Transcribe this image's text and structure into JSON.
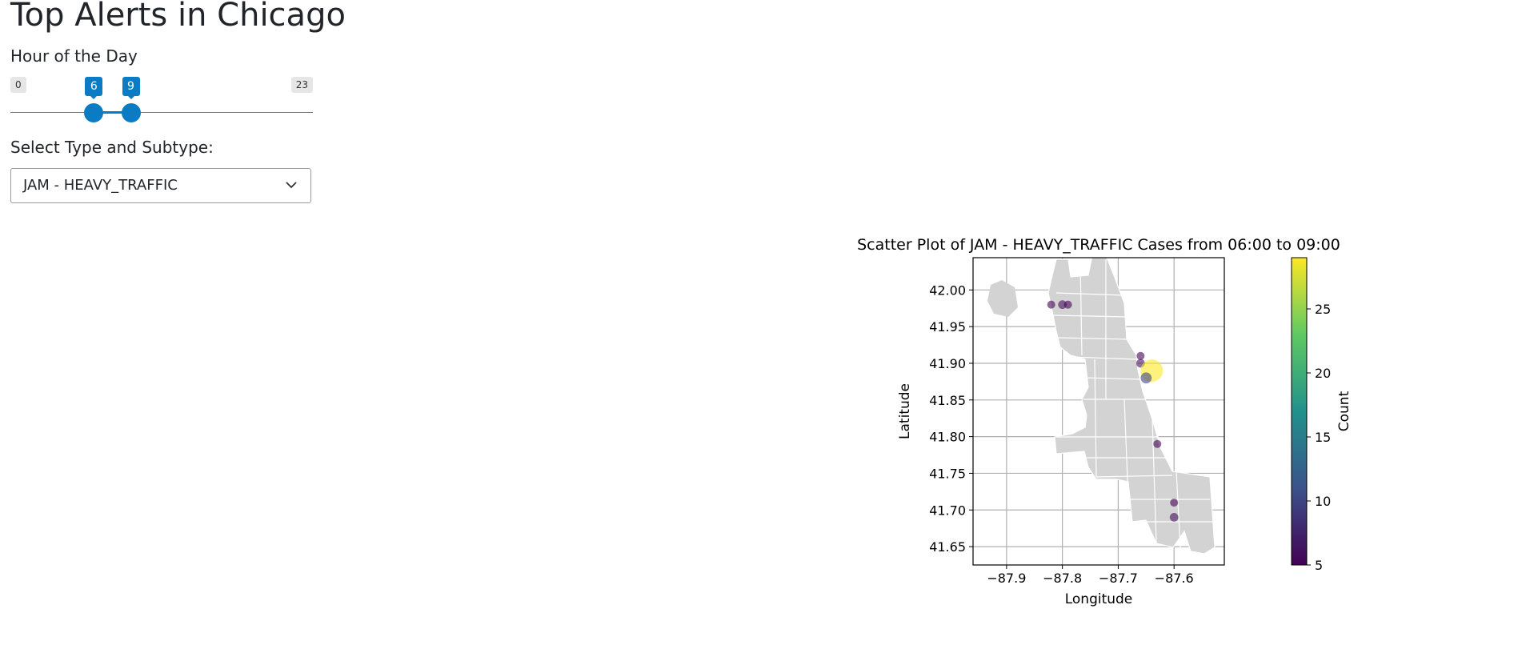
{
  "page": {
    "title": "Top Alerts in Chicago",
    "hour_label": "Hour of the Day",
    "select_label": "Select Type and Subtype:"
  },
  "slider": {
    "min": 0,
    "max": 23,
    "from": 6,
    "to": 9,
    "min_label": "0",
    "max_label": "23",
    "from_label": "6",
    "to_label": "9",
    "accent": "#0b7cc4"
  },
  "select": {
    "selected": "JAM - HEAVY_TRAFFIC"
  },
  "icons": {
    "dropdown": "chevron-down-icon"
  },
  "chart_data": {
    "type": "scatter",
    "title": "Scatter Plot of JAM - HEAVY_TRAFFIC Cases from 06:00 to 09:00",
    "xlabel": "Longitude",
    "ylabel": "Latitude",
    "xlim": [
      -87.96,
      -87.51
    ],
    "ylim": [
      41.625,
      42.044
    ],
    "xticks": [
      -87.9,
      -87.8,
      -87.7,
      -87.6
    ],
    "xtick_labels": [
      "−87.9",
      "−87.8",
      "−87.7",
      "−87.6"
    ],
    "yticks": [
      41.65,
      41.7,
      41.75,
      41.8,
      41.85,
      41.9,
      41.95,
      42.0
    ],
    "ytick_labels": [
      "41.65",
      "41.70",
      "41.75",
      "41.80",
      "41.85",
      "41.90",
      "41.95",
      "42.00"
    ],
    "grid": true,
    "background_map": "Chicago neighborhood boundaries (gray)",
    "colormap": "viridis",
    "marker_alpha": 0.6,
    "colorbar": {
      "label": "Count",
      "range": [
        5,
        29
      ],
      "ticks": [
        5,
        10,
        15,
        20,
        25
      ],
      "tick_labels": [
        "5",
        "10",
        "15",
        "20",
        "25"
      ]
    },
    "points": [
      {
        "x": -87.82,
        "y": 41.98,
        "count": 5
      },
      {
        "x": -87.8,
        "y": 41.98,
        "count": 6
      },
      {
        "x": -87.79,
        "y": 41.98,
        "count": 5
      },
      {
        "x": -87.66,
        "y": 41.91,
        "count": 5
      },
      {
        "x": -87.66,
        "y": 41.9,
        "count": 6
      },
      {
        "x": -87.64,
        "y": 41.89,
        "count": 29
      },
      {
        "x": -87.65,
        "y": 41.88,
        "count": 10
      },
      {
        "x": -87.63,
        "y": 41.79,
        "count": 5
      },
      {
        "x": -87.6,
        "y": 41.71,
        "count": 5
      },
      {
        "x": -87.6,
        "y": 41.69,
        "count": 6
      }
    ]
  }
}
